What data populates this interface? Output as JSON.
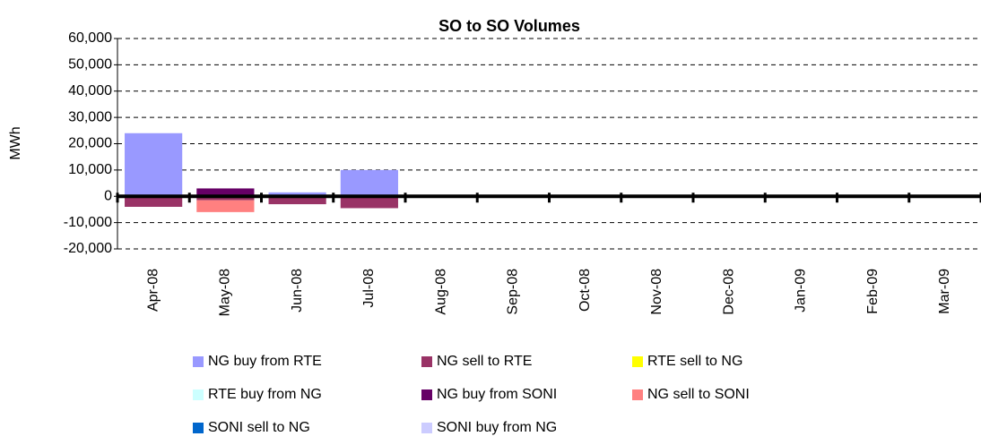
{
  "chart_data": {
    "type": "stacked_bar",
    "title": "SO to SO Volumes",
    "y_label": "MWh",
    "categories": [
      "Apr-08",
      "May-08",
      "Jun-08",
      "Jul-08",
      "Aug-08",
      "Sep-08",
      "Oct-08",
      "Nov-08",
      "Dec-08",
      "Jan-09",
      "Feb-09",
      "Mar-09"
    ],
    "series": [
      {
        "name": "NG buy from RTE",
        "color": "#9999ff",
        "values": [
          24000,
          0,
          1500,
          10000,
          0,
          0,
          0,
          0,
          0,
          0,
          0,
          0
        ]
      },
      {
        "name": "NG sell to RTE",
        "color": "#993366",
        "values": [
          -4000,
          -1500,
          -3000,
          -4500,
          0,
          0,
          0,
          0,
          0,
          0,
          0,
          0
        ]
      },
      {
        "name": "RTE sell to NG",
        "color": "#ffff00",
        "values": [
          0,
          0,
          0,
          0,
          0,
          0,
          0,
          0,
          0,
          0,
          0,
          0
        ]
      },
      {
        "name": "RTE buy from NG",
        "color": "#ccffff",
        "values": [
          0,
          0,
          0,
          0,
          0,
          0,
          0,
          0,
          0,
          0,
          0,
          0
        ]
      },
      {
        "name": "NG buy from SONI",
        "color": "#660066",
        "values": [
          0,
          3000,
          0,
          0,
          0,
          0,
          0,
          0,
          0,
          0,
          0,
          0
        ]
      },
      {
        "name": "NG sell to SONI",
        "color": "#ff8080",
        "values": [
          0,
          -4500,
          0,
          0,
          0,
          0,
          0,
          0,
          0,
          0,
          0,
          0
        ]
      },
      {
        "name": "SONI sell to NG",
        "color": "#0066cc",
        "values": [
          0,
          0,
          0,
          0,
          0,
          0,
          0,
          0,
          0,
          0,
          0,
          0
        ]
      },
      {
        "name": "SONI buy from NG",
        "color": "#ccccff",
        "values": [
          0,
          0,
          0,
          0,
          0,
          0,
          0,
          0,
          0,
          0,
          0,
          0
        ]
      }
    ],
    "ylim": [
      -20000,
      60000
    ],
    "yticks": [
      {
        "value": -20000,
        "label": "-20,000"
      },
      {
        "value": -10000,
        "label": "-10,000"
      },
      0,
      {
        "value": 10000,
        "label": "10,000"
      },
      {
        "value": 20000,
        "label": "20,000"
      },
      {
        "value": 30000,
        "label": "30,000"
      },
      {
        "value": 40000,
        "label": "40,000"
      },
      {
        "value": 50000,
        "label": "50,000"
      },
      {
        "value": 60000,
        "label": "60,000"
      }
    ],
    "grid": true
  }
}
